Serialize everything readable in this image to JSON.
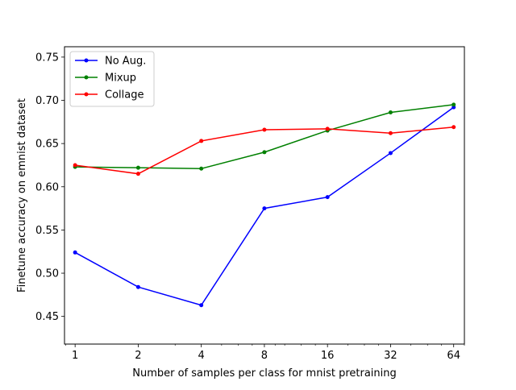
{
  "chart_data": {
    "type": "line",
    "title": "",
    "xlabel": "Number of samples per class for mnist pretraining",
    "ylabel": "Finetune accuracy on emnist dataset",
    "x": [
      1,
      2,
      4,
      8,
      16,
      32,
      64
    ],
    "x_tick_labels": [
      "1",
      "2",
      "4",
      "8",
      "16",
      "32",
      "64"
    ],
    "x_scale": "log2",
    "xlim": [
      0.89,
      72
    ],
    "ylim": [
      0.418,
      0.762
    ],
    "y_ticks": [
      0.45,
      0.5,
      0.55,
      0.6,
      0.65,
      0.7,
      0.75
    ],
    "y_tick_labels": [
      "0.45",
      "0.50",
      "0.55",
      "0.60",
      "0.65",
      "0.70",
      "0.75"
    ],
    "grid": false,
    "legend_position": "top-left",
    "series": [
      {
        "name": "No Aug.",
        "color": "#0000ff",
        "values": [
          0.524,
          0.484,
          0.463,
          0.575,
          0.588,
          0.639,
          0.692
        ]
      },
      {
        "name": "Mixup",
        "color": "#008000",
        "values": [
          0.623,
          0.622,
          0.621,
          0.64,
          0.665,
          0.686,
          0.695
        ]
      },
      {
        "name": "Collage",
        "color": "#ff0000",
        "values": [
          0.625,
          0.615,
          0.653,
          0.666,
          0.667,
          0.662,
          0.669
        ]
      }
    ]
  }
}
